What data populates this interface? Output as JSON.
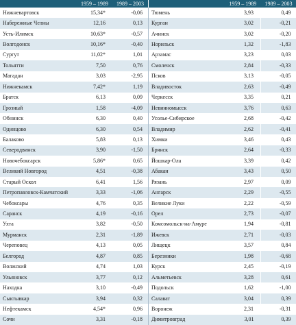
{
  "header": {
    "col_period1": "1959 – 1989",
    "col_period2": "1989 – 2003"
  },
  "left_rows": [
    {
      "city": "Нижневартовск",
      "v1": "15,34*",
      "v2": "-0,06"
    },
    {
      "city": "Набережные Челны",
      "v1": "12,16",
      "v2": "0,13"
    },
    {
      "city": "Усть-Илимск",
      "v1": "10,63*",
      "v2": "-0,57"
    },
    {
      "city": "Волгодонск",
      "v1": "10,16*",
      "v2": "-0,40"
    },
    {
      "city": "Сургут",
      "v1": "11,02*",
      "v2": "1,01"
    },
    {
      "city": "Тольятти",
      "v1": "7,50",
      "v2": "0,76"
    },
    {
      "city": "Магадан",
      "v1": "3,03",
      "v2": "-2,95"
    },
    {
      "city": "Нижнекамск",
      "v1": "7,42*",
      "v2": "1,19"
    },
    {
      "city": "Братск",
      "v1": "6,13",
      "v2": "0,09"
    },
    {
      "city": "Грозный",
      "v1": "1,58",
      "v2": "-4,09"
    },
    {
      "city": "Обнинск",
      "v1": "6,30",
      "v2": "0,40"
    },
    {
      "city": "Одинцово",
      "v1": "6,30",
      "v2": "0,54"
    },
    {
      "city": "Балаково",
      "v1": "5,83",
      "v2": "0,13"
    },
    {
      "city": "Северодвинск",
      "v1": "3,90",
      "v2": "-1,50"
    },
    {
      "city": "Новочебоксарск",
      "v1": "5,86*",
      "v2": "0,65"
    },
    {
      "city": "Великий Новгород",
      "v1": "4,51",
      "v2": "-0,38"
    },
    {
      "city": "Старый Оскол",
      "v1": "6,41",
      "v2": "1,56"
    },
    {
      "city": "Петропавловск-Камчатский",
      "v1": "3,33",
      "v2": "-1,06"
    },
    {
      "city": "Чебоксары",
      "v1": "4,76",
      "v2": "0,35"
    },
    {
      "city": "Саранск",
      "v1": "4,19",
      "v2": "-0,16"
    },
    {
      "city": "Ухта",
      "v1": "3,82",
      "v2": "-0,50"
    },
    {
      "city": "Мурманск",
      "v1": "2,31",
      "v2": "-1,89"
    },
    {
      "city": "Череповец",
      "v1": "4,13",
      "v2": "0,05"
    },
    {
      "city": "Белгород",
      "v1": "4,87",
      "v2": "0,85"
    },
    {
      "city": "Волжский",
      "v1": "4,74",
      "v2": "1,03"
    },
    {
      "city": "Ульяновск",
      "v1": "3,77",
      "v2": "0,12"
    },
    {
      "city": "Находка",
      "v1": "3,10",
      "v2": "-0,49"
    },
    {
      "city": "Сыктывкар",
      "v1": "3,94",
      "v2": "0,32"
    },
    {
      "city": "Нефтекамск",
      "v1": "4,54*",
      "v2": "0,96"
    },
    {
      "city": "Сочи",
      "v1": "3,31",
      "v2": "-0,18"
    }
  ],
  "right_rows": [
    {
      "city": "Тюмень",
      "v1": "3,93",
      "v2": "0,49"
    },
    {
      "city": "Курган",
      "v1": "3,02",
      "v2": "-0,21"
    },
    {
      "city": "Ачинск",
      "v1": "3,02",
      "v2": "-0,20"
    },
    {
      "city": "Норильск",
      "v1": "1,32",
      "v2": "-1,83"
    },
    {
      "city": "Арзамас",
      "v1": "3,23",
      "v2": "0,03"
    },
    {
      "city": "Смоленск",
      "v1": "2,84",
      "v2": "-0,33"
    },
    {
      "city": "Псков",
      "v1": "3,13",
      "v2": "-0,05"
    },
    {
      "city": "Владивосток",
      "v1": "2,63",
      "v2": "-0,49"
    },
    {
      "city": "Черкесск",
      "v1": "3,35",
      "v2": "0,21"
    },
    {
      "city": "Невинномысск",
      "v1": "3,76",
      "v2": "0,63"
    },
    {
      "city": "Усолье-Сибирское",
      "v1": "2,68",
      "v2": "-0,42"
    },
    {
      "city": "Владимир",
      "v1": "2,62",
      "v2": "-0,41"
    },
    {
      "city": "Химки",
      "v1": "3,46",
      "v2": "0,43"
    },
    {
      "city": "Брянск",
      "v1": "2,64",
      "v2": "-0,33"
    },
    {
      "city": "Йошкар-Ола",
      "v1": "3,39",
      "v2": "0,42"
    },
    {
      "city": "Абакан",
      "v1": "3,43",
      "v2": "0,50"
    },
    {
      "city": "Рязань",
      "v1": "2,97",
      "v2": "0,09"
    },
    {
      "city": "Ангарск",
      "v1": "2,29",
      "v2": "-0,55"
    },
    {
      "city": "Великие Луки",
      "v1": "2,22",
      "v2": "-0,59"
    },
    {
      "city": "Орел",
      "v1": "2,73",
      "v2": "-0,07"
    },
    {
      "city": "Комсомольск-на-Амуре",
      "v1": "1,94",
      "v2": "-0,81"
    },
    {
      "city": "Ижевск",
      "v1": "2,71",
      "v2": "-0,03"
    },
    {
      "city": "Лищецк",
      "v1": "3,57",
      "v2": "0,84"
    },
    {
      "city": "Березники",
      "v1": "1,98",
      "v2": "-0,68"
    },
    {
      "city": "Курск",
      "v1": "2,45",
      "v2": "-0,19"
    },
    {
      "city": "Альметьевск",
      "v1": "3,28",
      "v2": "0,61"
    },
    {
      "city": "Подольск",
      "v1": "1,62",
      "v2": "-1,00"
    },
    {
      "city": "Салават",
      "v1": "3,04",
      "v2": "0,39"
    },
    {
      "city": "Воронеж",
      "v1": "2,31",
      "v2": "-0,31"
    },
    {
      "city": "Димитровград",
      "v1": "3,01",
      "v2": "0,39"
    }
  ]
}
